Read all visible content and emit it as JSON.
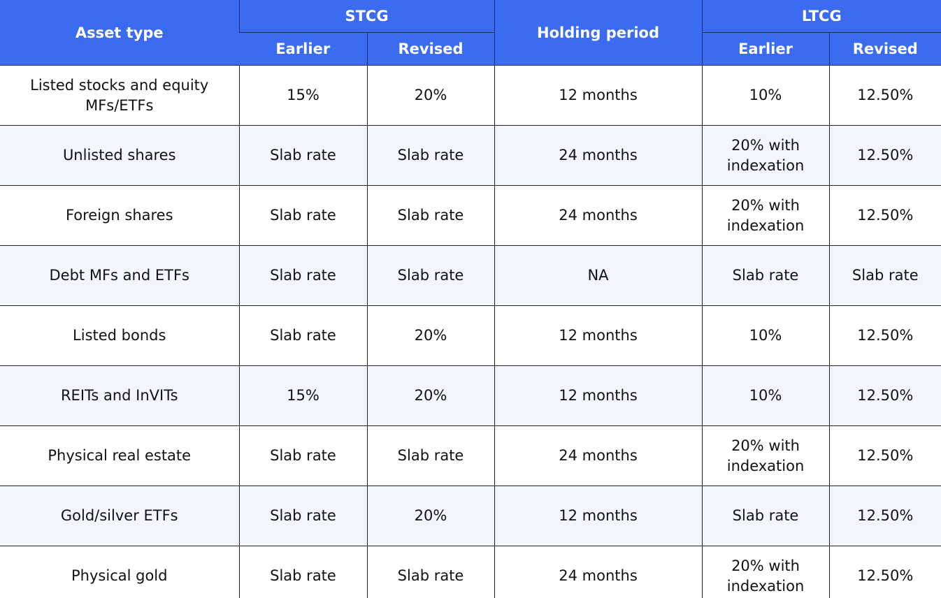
{
  "colors": {
    "header_bg": "#3b6cf0",
    "header_text": "#ffffff",
    "row_alt_bg": "#f2f5fd",
    "grid_line": "#222222"
  },
  "header": {
    "asset_type": "Asset type",
    "stcg": "STCG",
    "holding_period": "Holding period",
    "ltcg": "LTCG",
    "stcg_earlier": "Earlier",
    "stcg_revised": "Revised",
    "ltcg_earlier": "Earlier",
    "ltcg_revised": "Revised"
  },
  "rows": [
    {
      "asset": "Listed stocks and equity MFs/ETFs",
      "stcg_earlier": "15%",
      "stcg_revised": "20%",
      "holding": "12 months",
      "ltcg_earlier": "10%",
      "ltcg_revised": "12.50%"
    },
    {
      "asset": "Unlisted shares",
      "stcg_earlier": "Slab rate",
      "stcg_revised": "Slab rate",
      "holding": "24 months",
      "ltcg_earlier": "20% with indexation",
      "ltcg_revised": "12.50%"
    },
    {
      "asset": "Foreign shares",
      "stcg_earlier": "Slab rate",
      "stcg_revised": "Slab rate",
      "holding": "24 months",
      "ltcg_earlier": "20% with indexation",
      "ltcg_revised": "12.50%"
    },
    {
      "asset": "Debt MFs and ETFs",
      "stcg_earlier": "Slab rate",
      "stcg_revised": "Slab rate",
      "holding": "NA",
      "ltcg_earlier": "Slab rate",
      "ltcg_revised": "Slab rate"
    },
    {
      "asset": "Listed bonds",
      "stcg_earlier": "Slab rate",
      "stcg_revised": "20%",
      "holding": "12 months",
      "ltcg_earlier": "10%",
      "ltcg_revised": "12.50%"
    },
    {
      "asset": "REITs and InVITs",
      "stcg_earlier": "15%",
      "stcg_revised": "20%",
      "holding": "12 months",
      "ltcg_earlier": "10%",
      "ltcg_revised": "12.50%"
    },
    {
      "asset": "Physical real estate",
      "stcg_earlier": "Slab rate",
      "stcg_revised": "Slab rate",
      "holding": "24 months",
      "ltcg_earlier": "20% with indexation",
      "ltcg_revised": "12.50%"
    },
    {
      "asset": "Gold/silver ETFs",
      "stcg_earlier": "Slab rate",
      "stcg_revised": "20%",
      "holding": "12 months",
      "ltcg_earlier": "Slab rate",
      "ltcg_revised": "12.50%"
    },
    {
      "asset": "Physical gold",
      "stcg_earlier": "Slab rate",
      "stcg_revised": "Slab rate",
      "holding": "24 months",
      "ltcg_earlier": "20% with indexation",
      "ltcg_revised": "12.50%"
    }
  ]
}
